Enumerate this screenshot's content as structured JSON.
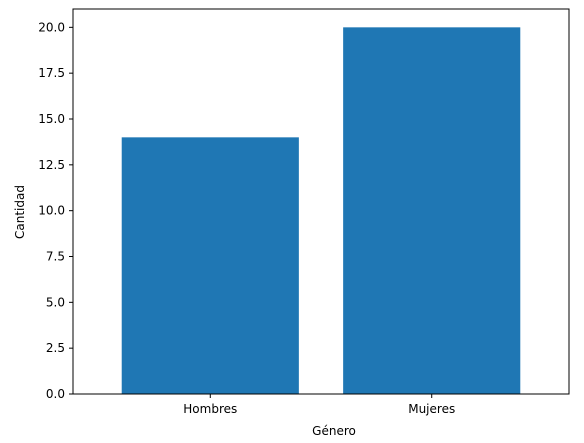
{
  "chart_data": {
    "type": "bar",
    "title": "",
    "xlabel": "Género",
    "ylabel": "Cantidad",
    "categories": [
      "Hombres",
      "Mujeres"
    ],
    "values": [
      14,
      20
    ],
    "ylim": [
      0,
      21
    ],
    "yticks": [
      "0.0",
      "2.5",
      "5.0",
      "7.5",
      "10.0",
      "12.5",
      "15.0",
      "17.5",
      "20.0"
    ],
    "bar_color": "#1f77b4",
    "grid": false,
    "legend": "none"
  }
}
